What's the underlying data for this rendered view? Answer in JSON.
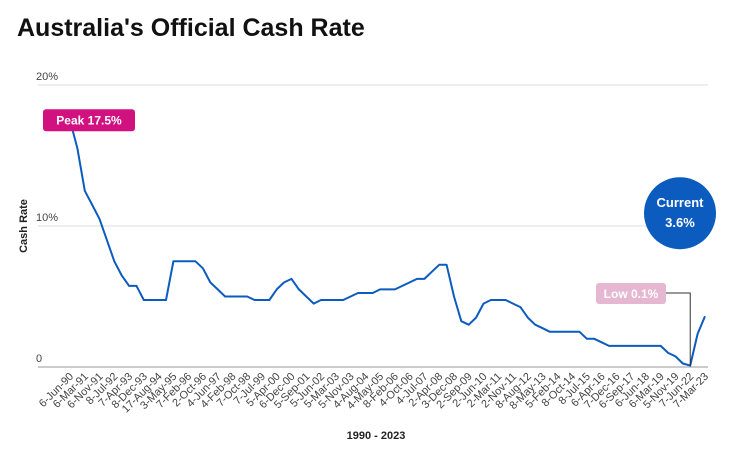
{
  "chart_data": {
    "type": "line",
    "title": "Australia's Official Cash Rate",
    "y_label": "Cash Rate",
    "x_label": "1990 - 2023",
    "categories": [
      "6-Jun-90",
      null,
      "6-Mar-91",
      null,
      "6-Nov-91",
      null,
      "8-Jul-92",
      null,
      "7-Apr-93",
      null,
      "8-Dec-93",
      null,
      "17-Aug-94",
      null,
      "3-May-95",
      null,
      "7-Feb-96",
      null,
      "2-Oct-96",
      null,
      "4-Jun-97",
      null,
      "4-Feb-98",
      null,
      "7-Oct-98",
      null,
      "7-Jul-99",
      null,
      "5-Apr-00",
      null,
      "6-Dec-00",
      null,
      "5-Sep-01",
      null,
      "5-Jun-02",
      null,
      "5-Mar-03",
      null,
      "5-Nov-03",
      null,
      "4-Aug-04",
      null,
      "4-May-05",
      null,
      "8-Feb-06",
      null,
      "4-Oct-06",
      null,
      "4-Jul-07",
      null,
      "2-Apr-08",
      null,
      "3-Dec-08",
      null,
      "2-Sep-09",
      null,
      "2-Jun-10",
      null,
      "2-Mar-11",
      null,
      "2-Nov-11",
      null,
      "8-Aug-12",
      null,
      "8-May-13",
      null,
      "5-Feb-14",
      null,
      "8-Oct-14",
      null,
      "8-Jul-15",
      null,
      "6-Apr-16",
      null,
      "7-Dec-16",
      null,
      "6-Sep-17",
      null,
      "6-Jun-18",
      null,
      "6-Mar-19",
      null,
      "5-Nov-19",
      null,
      "7-Jun-22",
      null,
      "7-Mar-23"
    ],
    "series": [
      {
        "name": "Cash Rate",
        "color": "#0c5bbf",
        "values": [
          17.5,
          15.5,
          12.5,
          11.5,
          10.5,
          9,
          7.5,
          6.5,
          5.75,
          5.75,
          4.75,
          4.75,
          4.75,
          4.75,
          7.5,
          7.5,
          7.5,
          7.5,
          7.0,
          6.0,
          5.5,
          5.0,
          5.0,
          5.0,
          5.0,
          4.75,
          4.75,
          4.75,
          5.5,
          6.0,
          6.25,
          5.5,
          5.0,
          4.5,
          4.75,
          4.75,
          4.75,
          4.75,
          5.0,
          5.25,
          5.25,
          5.25,
          5.5,
          5.5,
          5.5,
          5.75,
          6.0,
          6.25,
          6.25,
          6.75,
          7.25,
          7.25,
          5.0,
          3.25,
          3.0,
          3.5,
          4.5,
          4.75,
          4.75,
          4.75,
          4.5,
          4.25,
          3.5,
          3.0,
          2.75,
          2.5,
          2.5,
          2.5,
          2.5,
          2.5,
          2.0,
          2.0,
          1.75,
          1.5,
          1.5,
          1.5,
          1.5,
          1.5,
          1.5,
          1.5,
          1.5,
          1.0,
          0.75,
          0.25,
          0.1,
          2.35,
          3.6
        ]
      }
    ],
    "ylim": [
      0,
      20
    ],
    "yticks": [
      0,
      {
        "value": 10,
        "label": "10%"
      },
      {
        "value": 20,
        "label": "20%"
      }
    ],
    "grid": true,
    "annotations": [
      "Peak 17.5%",
      "Current",
      "3.6%",
      "Low 0.1%"
    ]
  }
}
